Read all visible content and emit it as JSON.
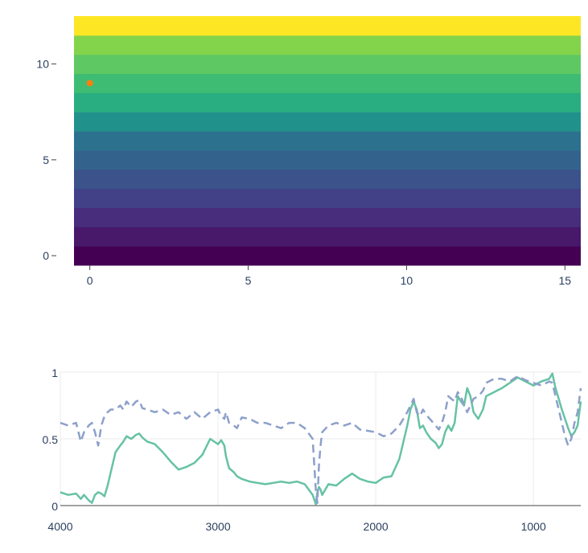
{
  "chart_data": [
    {
      "type": "heatmap",
      "title": "",
      "xlabel": "",
      "ylabel": "",
      "xlim": [
        -0.5,
        15.5
      ],
      "ylim": [
        -0.5,
        12.5
      ],
      "x_ticks": [
        "0",
        "5",
        "10",
        "15"
      ],
      "y_ticks": [
        "0",
        "5",
        "10"
      ],
      "colorscale": "viridis",
      "rows": 13,
      "row_colors": [
        "#440154",
        "#48186a",
        "#472d7b",
        "#424086",
        "#3b528b",
        "#33638d",
        "#2c728e",
        "#21918c",
        "#28ae80",
        "#3fbc73",
        "#5ec962",
        "#84d44b",
        "#fde725"
      ],
      "marker": {
        "x": 0,
        "y": 9,
        "color": "#ff7f0e"
      }
    },
    {
      "type": "line",
      "title": "",
      "xlabel": "",
      "ylabel": "",
      "xlim": [
        4000,
        700
      ],
      "ylim": [
        0,
        1
      ],
      "x_ticks": [
        "4000",
        "3000",
        "2000",
        "1000"
      ],
      "y_ticks": [
        "0",
        "0.5",
        "1"
      ],
      "grid": true,
      "series": [
        {
          "style": "solid",
          "color": "#66c2a5",
          "x": [
            4000,
            3950,
            3900,
            3870,
            3850,
            3820,
            3800,
            3780,
            3760,
            3740,
            3720,
            3700,
            3680,
            3650,
            3620,
            3600,
            3580,
            3550,
            3520,
            3500,
            3480,
            3450,
            3400,
            3350,
            3300,
            3250,
            3200,
            3150,
            3100,
            3050,
            3000,
            2980,
            2960,
            2950,
            2930,
            2900,
            2880,
            2850,
            2800,
            2750,
            2700,
            2650,
            2600,
            2550,
            2500,
            2450,
            2400,
            2380,
            2370,
            2360,
            2350,
            2340,
            2300,
            2250,
            2200,
            2150,
            2100,
            2050,
            2000,
            1950,
            1900,
            1850,
            1800,
            1780,
            1760,
            1740,
            1720,
            1700,
            1680,
            1650,
            1620,
            1600,
            1580,
            1560,
            1540,
            1520,
            1500,
            1480,
            1460,
            1440,
            1420,
            1400,
            1380,
            1350,
            1320,
            1300,
            1250,
            1200,
            1150,
            1100,
            1050,
            1000,
            950,
            900,
            880,
            860,
            840,
            820,
            800,
            780,
            760,
            740,
            720,
            700
          ],
          "y": [
            0.1,
            0.08,
            0.09,
            0.05,
            0.08,
            0.04,
            0.02,
            0.08,
            0.1,
            0.09,
            0.07,
            0.15,
            0.25,
            0.4,
            0.45,
            0.48,
            0.52,
            0.5,
            0.53,
            0.54,
            0.51,
            0.48,
            0.46,
            0.4,
            0.33,
            0.27,
            0.29,
            0.32,
            0.38,
            0.5,
            0.46,
            0.49,
            0.45,
            0.37,
            0.28,
            0.25,
            0.22,
            0.2,
            0.18,
            0.17,
            0.16,
            0.17,
            0.18,
            0.17,
            0.18,
            0.16,
            0.08,
            0.01,
            0.1,
            0.14,
            0.12,
            0.08,
            0.16,
            0.15,
            0.2,
            0.24,
            0.2,
            0.18,
            0.17,
            0.21,
            0.22,
            0.35,
            0.6,
            0.72,
            0.78,
            0.72,
            0.58,
            0.6,
            0.55,
            0.5,
            0.47,
            0.43,
            0.46,
            0.55,
            0.6,
            0.56,
            0.62,
            0.82,
            0.78,
            0.75,
            0.88,
            0.82,
            0.7,
            0.65,
            0.72,
            0.82,
            0.85,
            0.88,
            0.92,
            0.96,
            0.93,
            0.9,
            0.93,
            0.95,
            0.99,
            0.88,
            0.8,
            0.72,
            0.65,
            0.58,
            0.52,
            0.55,
            0.6,
            0.78
          ]
        },
        {
          "style": "dash",
          "color": "#8da0cb",
          "x": [
            4000,
            3950,
            3900,
            3870,
            3850,
            3820,
            3800,
            3780,
            3760,
            3740,
            3720,
            3700,
            3680,
            3650,
            3620,
            3600,
            3580,
            3550,
            3520,
            3500,
            3480,
            3450,
            3400,
            3350,
            3300,
            3250,
            3200,
            3150,
            3100,
            3050,
            3000,
            2980,
            2960,
            2950,
            2930,
            2900,
            2880,
            2850,
            2800,
            2750,
            2700,
            2650,
            2600,
            2550,
            2500,
            2450,
            2400,
            2380,
            2370,
            2360,
            2350,
            2340,
            2300,
            2250,
            2200,
            2150,
            2100,
            2050,
            2000,
            1950,
            1900,
            1850,
            1800,
            1780,
            1760,
            1740,
            1720,
            1700,
            1680,
            1650,
            1620,
            1600,
            1580,
            1560,
            1540,
            1520,
            1500,
            1480,
            1460,
            1440,
            1420,
            1400,
            1380,
            1350,
            1320,
            1300,
            1250,
            1200,
            1150,
            1100,
            1050,
            1000,
            950,
            900,
            880,
            860,
            840,
            820,
            800,
            780,
            760,
            740,
            720,
            700
          ],
          "y": [
            0.62,
            0.6,
            0.62,
            0.48,
            0.55,
            0.6,
            0.62,
            0.55,
            0.45,
            0.6,
            0.67,
            0.7,
            0.72,
            0.72,
            0.75,
            0.72,
            0.78,
            0.74,
            0.78,
            0.79,
            0.73,
            0.72,
            0.7,
            0.72,
            0.68,
            0.7,
            0.65,
            0.7,
            0.65,
            0.7,
            0.72,
            0.67,
            0.65,
            0.7,
            0.62,
            0.6,
            0.58,
            0.66,
            0.65,
            0.62,
            0.62,
            0.6,
            0.58,
            0.62,
            0.62,
            0.58,
            0.5,
            0.12,
            0.02,
            0.3,
            0.45,
            0.55,
            0.6,
            0.62,
            0.6,
            0.62,
            0.57,
            0.56,
            0.55,
            0.52,
            0.54,
            0.6,
            0.7,
            0.75,
            0.8,
            0.7,
            0.67,
            0.72,
            0.68,
            0.64,
            0.6,
            0.57,
            0.62,
            0.7,
            0.82,
            0.8,
            0.78,
            0.85,
            0.82,
            0.75,
            0.7,
            0.75,
            0.8,
            0.82,
            0.86,
            0.92,
            0.95,
            0.95,
            0.93,
            0.97,
            0.94,
            0.92,
            0.9,
            0.93,
            0.92,
            0.82,
            0.72,
            0.62,
            0.52,
            0.45,
            0.5,
            0.62,
            0.7,
            0.88
          ]
        }
      ]
    }
  ]
}
